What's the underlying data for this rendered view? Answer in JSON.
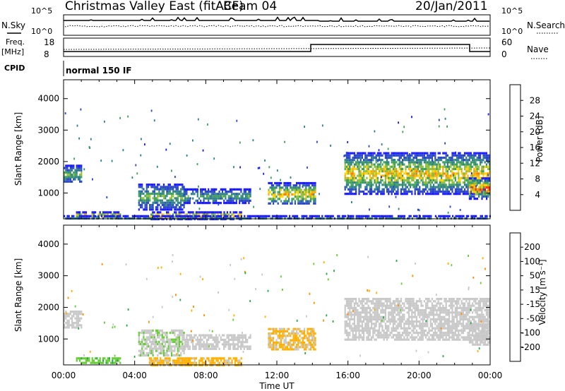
{
  "header": {
    "title": "Christmas Valley East (fitACF)",
    "beam": "Beam 04",
    "date": "20/Jan/2011"
  },
  "status_panels": {
    "nsky_label": "N.Sky",
    "nsky_ticks": [
      "10^5",
      "10^0"
    ],
    "nsearch_label": "N.Search",
    "nsearch_ticks": [
      "10^5",
      "10^0"
    ],
    "freq_label_top": "Freq.",
    "freq_label_bottom": "[MHz]",
    "freq_ticks": [
      "18",
      "8"
    ],
    "nave_label": "Nave",
    "nave_ticks": [
      "60",
      "0"
    ],
    "cpid_label": "CPID",
    "cpid_value": "normal 150 IF"
  },
  "chart_data": [
    {
      "type": "heatmap",
      "name": "power",
      "ylabel": "Slant Range [km]",
      "yticks": [
        "4000",
        "3000",
        "2000",
        "1000"
      ],
      "ylim": [
        180,
        4600
      ],
      "xticks": [
        "00:00",
        "04:00",
        "08:00",
        "12:00",
        "16:00",
        "20:00",
        "00:00"
      ],
      "xlim_hours": [
        0,
        24
      ],
      "colorbar": {
        "label": "Power [dB]",
        "ticks": [
          "28",
          "24",
          "20",
          "16",
          "12",
          "8",
          "4"
        ],
        "range": [
          0,
          30
        ],
        "colors": [
          "#1a1aff",
          "#2a46c8",
          "#2f7f8a",
          "#3ea05a",
          "#8fbf3a",
          "#ffd400",
          "#ffaa00",
          "#ff7a00",
          "#ff3000",
          "#ee0000"
        ]
      },
      "echo_regions": [
        {
          "t0": 0.0,
          "t1": 1.0,
          "r0": 1350,
          "r1": 1900,
          "peak_db": 14
        },
        {
          "t0": 0.7,
          "t1": 3.2,
          "r0": 220,
          "r1": 420,
          "peak_db": 24
        },
        {
          "t0": 4.8,
          "t1": 10.0,
          "r0": 200,
          "r1": 420,
          "peak_db": 26
        },
        {
          "t0": 4.2,
          "t1": 6.8,
          "r0": 500,
          "r1": 1300,
          "peak_db": 14
        },
        {
          "t0": 6.8,
          "t1": 10.5,
          "r0": 700,
          "r1": 1150,
          "peak_db": 12
        },
        {
          "t0": 11.5,
          "t1": 14.2,
          "r0": 650,
          "r1": 1350,
          "peak_db": 22
        },
        {
          "t0": 15.8,
          "t1": 24.0,
          "r0": 1000,
          "r1": 2300,
          "peak_db": 22
        },
        {
          "t0": 22.8,
          "t1": 24.0,
          "r0": 850,
          "r1": 1500,
          "peak_db": 28
        },
        {
          "t0": 0.0,
          "t1": 24.0,
          "r0": 190,
          "r1": 300,
          "peak_db": 10
        }
      ]
    },
    {
      "type": "heatmap",
      "name": "velocity",
      "ylabel": "Slant Range [km]",
      "yticks": [
        "4000",
        "3000",
        "2000",
        "1000"
      ],
      "ylim": [
        180,
        4600
      ],
      "xticks": [
        "00:00",
        "04:00",
        "08:00",
        "12:00",
        "16:00",
        "20:00",
        "00:00"
      ],
      "xlabel": "Time UT",
      "xlim_hours": [
        0,
        24
      ],
      "colorbar": {
        "label": "Velocity [m s⁻¹]",
        "ticks": [
          "200",
          "100",
          "50",
          "15",
          "-15",
          "-50",
          "-100",
          "-200"
        ],
        "range": [
          -250,
          250
        ],
        "colors": [
          "#ff0000",
          "#ff5000",
          "#ff9000",
          "#ffb000",
          "#c8c8c8",
          "#c8c8c8",
          "#66cc33",
          "#2aa84a",
          "#2a6fd0",
          "#1a1aa8"
        ]
      },
      "echo_regions": [
        {
          "t0": 0.0,
          "t1": 1.0,
          "r0": 1350,
          "r1": 1900,
          "vel": 0
        },
        {
          "t0": 0.7,
          "t1": 3.2,
          "r0": 220,
          "r1": 420,
          "vel": 80
        },
        {
          "t0": 4.8,
          "t1": 10.0,
          "r0": 200,
          "r1": 420,
          "vel": -70
        },
        {
          "t0": 4.2,
          "t1": 6.8,
          "r0": 500,
          "r1": 1300,
          "vel": 40
        },
        {
          "t0": 6.8,
          "t1": 10.5,
          "r0": 700,
          "r1": 1150,
          "vel": 0
        },
        {
          "t0": 11.5,
          "t1": 14.2,
          "r0": 650,
          "r1": 1350,
          "vel": -60
        },
        {
          "t0": 15.8,
          "t1": 24.0,
          "r0": 1000,
          "r1": 2300,
          "vel": 0
        },
        {
          "t0": 22.8,
          "t1": 24.0,
          "r0": 850,
          "r1": 1500,
          "vel": 0
        }
      ]
    }
  ]
}
